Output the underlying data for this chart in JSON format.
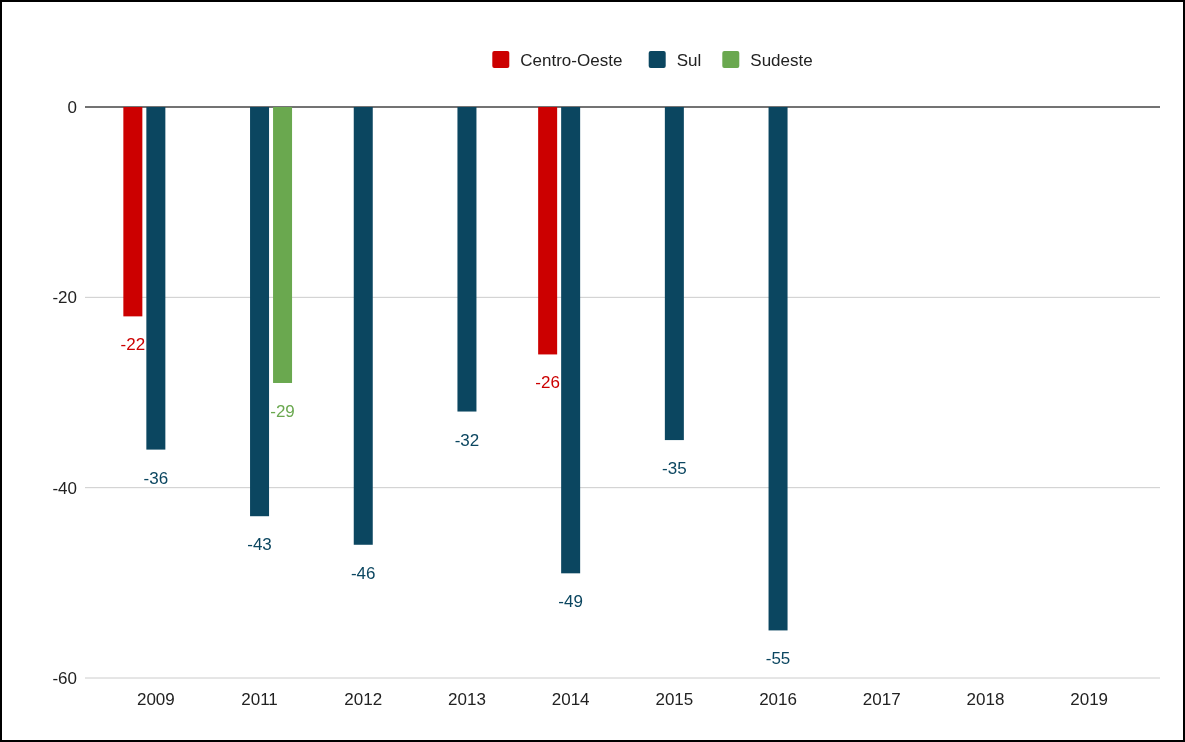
{
  "chart_data": {
    "type": "bar",
    "categories": [
      "2009",
      "2011",
      "2012",
      "2013",
      "2014",
      "2015",
      "2016",
      "2017",
      "2018",
      "2019"
    ],
    "series": [
      {
        "name": "Centro-Oeste",
        "color": "#cc0000",
        "values": [
          -22,
          null,
          null,
          null,
          -26,
          null,
          null,
          null,
          null,
          null
        ]
      },
      {
        "name": "Sul",
        "color": "#0b4660",
        "values": [
          -36,
          -43,
          -46,
          -32,
          -49,
          -35,
          -55,
          null,
          null,
          null
        ]
      },
      {
        "name": "Sudeste",
        "color": "#6aa84f",
        "values": [
          null,
          -29,
          null,
          null,
          null,
          null,
          null,
          null,
          null,
          null
        ]
      }
    ],
    "ylim": [
      -60,
      0
    ],
    "yticks": [
      0,
      -20,
      -40,
      -60
    ],
    "grid": "y",
    "legend": "top",
    "data_labels": true
  }
}
